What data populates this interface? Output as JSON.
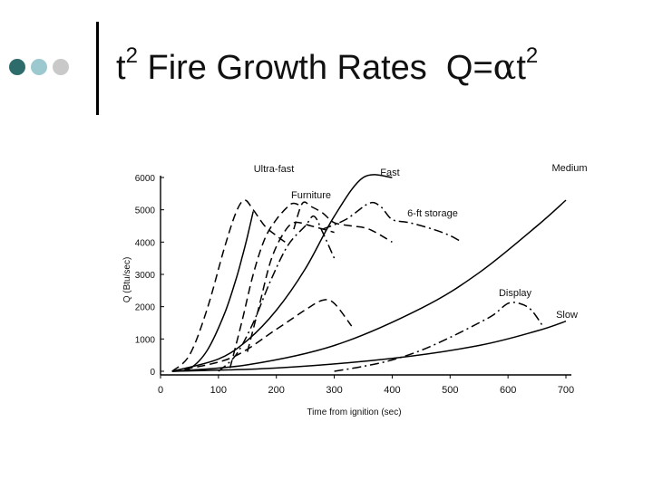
{
  "slide": {
    "dot_colors": [
      "#2e6b6b",
      "#9cc9cf",
      "#c9c9c9"
    ],
    "title_t": "t",
    "title_exp": "2",
    "title_mid": " Fire Growth Rates  Q=",
    "title_alpha": "α",
    "title_t2": "t",
    "title_exp2": "2"
  },
  "chart_data": {
    "type": "line",
    "title": "",
    "xlabel": "Time from ignition (sec)",
    "ylabel": "Q (Btu/sec)",
    "xlim": [
      0,
      700
    ],
    "ylim": [
      0,
      6000
    ],
    "xticks": [
      "0",
      "100",
      "200",
      "300",
      "400",
      "500",
      "600",
      "700"
    ],
    "yticks": [
      "0",
      "1000",
      "2000",
      "3000",
      "4000",
      "5000",
      "6000"
    ],
    "series": [
      {
        "name": "Ultra-fast",
        "dash": "solid",
        "x": [
          20,
          50,
          80,
          110,
          130,
          140,
          150,
          160
        ],
        "y": [
          0,
          80,
          630,
          1760,
          2830,
          3470,
          4170,
          4950
        ]
      },
      {
        "name": "Fast",
        "dash": "solid",
        "x": [
          20,
          100,
          150,
          200,
          250,
          300,
          350,
          400
        ],
        "y": [
          0,
          380,
          960,
          1890,
          3170,
          4800,
          6000,
          6000
        ]
      },
      {
        "name": "Medium",
        "dash": "solid",
        "x": [
          20,
          150,
          300,
          450,
          550,
          650,
          700
        ],
        "y": [
          0,
          200,
          800,
          1950,
          3050,
          4500,
          5300
        ]
      },
      {
        "name": "Slow",
        "dash": "solid",
        "x": [
          20,
          200,
          400,
          550,
          650,
          700
        ],
        "y": [
          0,
          100,
          400,
          800,
          1250,
          1550
        ]
      },
      {
        "name": "Furniture",
        "dash": "dash",
        "x": [
          20,
          50,
          80,
          110,
          130,
          145,
          160,
          180,
          200,
          215
        ],
        "y": [
          0,
          500,
          1900,
          3800,
          4900,
          5300,
          5000,
          4500,
          4200,
          4000
        ]
      },
      {
        "name": "Furniture",
        "dash": "dash",
        "x": [
          120,
          140,
          160,
          180,
          200,
          220,
          230,
          245
        ],
        "y": [
          100,
          1500,
          3000,
          4100,
          4700,
          5100,
          5200,
          5100
        ]
      },
      {
        "name": "6-ft storage",
        "dash": "dashdot",
        "x": [
          100,
          130,
          160,
          190,
          220,
          250,
          265,
          280,
          300
        ],
        "y": [
          0,
          500,
          1500,
          2800,
          3900,
          4500,
          4800,
          4300,
          3500
        ]
      },
      {
        "name": "Display",
        "dash": "dashdot",
        "x": [
          300,
          350,
          400,
          450,
          500,
          550,
          575,
          600,
          620,
          640,
          660
        ],
        "y": [
          0,
          150,
          350,
          650,
          1050,
          1500,
          1750,
          2100,
          2100,
          1900,
          1400
        ]
      }
    ],
    "extra_curves": [
      {
        "dash": "dash",
        "x": [
          20,
          120,
          200,
          250,
          280,
          300,
          330
        ],
        "y": [
          0,
          400,
          1300,
          1900,
          2200,
          2100,
          1400
        ]
      },
      {
        "dash": "dash",
        "x": [
          230,
          245,
          260,
          280,
          300,
          330,
          360,
          400
        ],
        "y": [
          4400,
          5200,
          5100,
          4900,
          4600,
          4500,
          4400,
          4000
        ]
      },
      {
        "dash": "dash",
        "x": [
          150,
          170,
          190,
          210,
          230,
          260,
          300
        ],
        "y": [
          600,
          2000,
          3400,
          4200,
          4600,
          4500,
          4300
        ]
      },
      {
        "dash": "dashdot",
        "x": [
          280,
          320,
          360,
          380,
          400,
          430,
          470,
          500,
          520
        ],
        "y": [
          4400,
          4700,
          5200,
          5100,
          4700,
          4600,
          4400,
          4200,
          4000
        ]
      }
    ],
    "labels": [
      {
        "text": "Ultra-fast"
      },
      {
        "text": "Fast"
      },
      {
        "text": "Medium"
      },
      {
        "text": "Furniture"
      },
      {
        "text": "6-ft storage"
      },
      {
        "text": "Display"
      },
      {
        "text": "Slow"
      }
    ]
  }
}
